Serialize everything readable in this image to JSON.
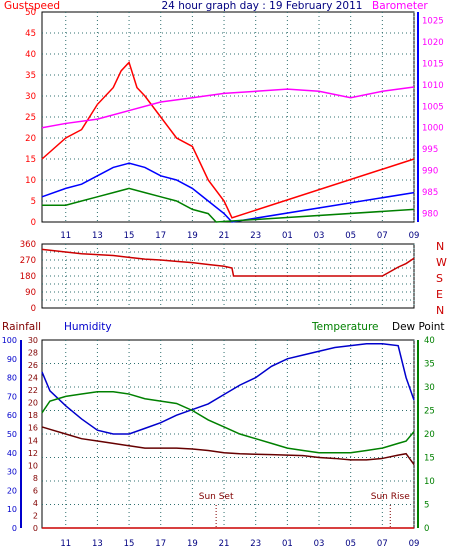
{
  "chart_data": [
    {
      "type": "line",
      "title": "24 hour graph day : 19 February 2011",
      "left_label": "Gustspeed",
      "right_label": "Barometer",
      "x_ticks": [
        "11",
        "13",
        "15",
        "17",
        "19",
        "21",
        "23",
        "01",
        "03",
        "05",
        "07",
        "09"
      ],
      "y_left_ticks": [
        0,
        5,
        10,
        15,
        20,
        25,
        30,
        35,
        40,
        45,
        50
      ],
      "ylim_left": [
        0,
        50
      ],
      "y_right_ticks": [
        980,
        985,
        990,
        995,
        1000,
        1005,
        1010,
        1015,
        1020,
        1025
      ],
      "ylim_right": [
        978,
        1027
      ],
      "grid": true,
      "series": [
        {
          "name": "Gustspeed",
          "axis": "left",
          "color": "#ff0000",
          "x": [
            9.5,
            11,
            12,
            13,
            14,
            14.5,
            15,
            15.5,
            16,
            17,
            18,
            19,
            20,
            21,
            21.5,
            9
          ],
          "y": [
            15,
            20,
            22,
            28,
            32,
            36,
            38,
            32,
            30,
            25,
            20,
            18,
            10,
            5,
            1,
            15
          ]
        },
        {
          "name": "",
          "axis": "left",
          "color": "#0000ff",
          "x": [
            9.5,
            11,
            12,
            13,
            14,
            15,
            16,
            17,
            18,
            19,
            20,
            21,
            21.5,
            9
          ],
          "y": [
            6,
            8,
            9,
            11,
            13,
            14,
            13,
            11,
            10,
            8,
            5,
            2,
            0,
            7
          ]
        },
        {
          "name": "",
          "axis": "left",
          "color": "#008000",
          "x": [
            9.5,
            11,
            12,
            13,
            14,
            15,
            16,
            17,
            18,
            19,
            20,
            20.5,
            9
          ],
          "y": [
            4,
            4,
            5,
            6,
            7,
            8,
            7,
            6,
            5,
            3,
            2,
            0,
            3
          ]
        },
        {
          "name": "Barometer",
          "axis": "right",
          "color": "#ff00ff",
          "x": [
            9.5,
            11,
            13,
            15,
            17,
            19,
            21,
            23,
            1,
            3,
            5,
            7,
            9
          ],
          "y": [
            1000,
            1001,
            1002,
            1004,
            1006,
            1007,
            1008,
            1008.5,
            1009,
            1008.5,
            1007,
            1008.5,
            1009.5
          ]
        }
      ]
    },
    {
      "type": "scatter",
      "left_label": "",
      "compass_labels": [
        "N",
        "W",
        "S",
        "E",
        "N"
      ],
      "y_ticks": [
        0,
        45,
        90,
        135,
        180,
        225,
        270,
        315,
        360
      ],
      "ylim": [
        0,
        360
      ],
      "grid": true,
      "series": [
        {
          "name": "",
          "color": "#cc0000",
          "x": [
            9.5,
            10,
            11,
            12,
            13,
            14,
            15,
            16,
            17,
            18,
            19,
            20,
            21,
            21.5,
            21.6,
            7,
            8,
            8.5,
            9
          ],
          "y": [
            330,
            325,
            315,
            305,
            300,
            295,
            285,
            275,
            270,
            262,
            255,
            245,
            235,
            225,
            180,
            180,
            230,
            250,
            280
          ]
        }
      ]
    },
    {
      "type": "line",
      "rainfall_label": "Rainfall",
      "humidity_label": "Humidity",
      "temperature_label": "Temperature",
      "dewpoint_label": "Dew Point",
      "sunset_label": "Sun Set",
      "sunrise_label": "Sun Rise",
      "rain_ticks": [
        0,
        2,
        4,
        6,
        8,
        10,
        12,
        14,
        16,
        18,
        20,
        22,
        24,
        26,
        28,
        30
      ],
      "humidity_ticks": [
        0,
        10,
        20,
        30,
        40,
        50,
        60,
        70,
        80,
        90,
        100
      ],
      "temp_ticks": [
        0,
        5,
        10,
        15,
        20,
        25,
        30,
        35,
        40
      ],
      "ylim_temp": [
        0,
        40
      ],
      "ylim_humidity": [
        0,
        100
      ],
      "grid": true,
      "series": [
        {
          "name": "Humidity",
          "axis": "humidity",
          "color": "#0000cc",
          "x": [
            9.5,
            10,
            11,
            12,
            13,
            14,
            15,
            16,
            17,
            18,
            19,
            20,
            21,
            22,
            23,
            24,
            1,
            2,
            3,
            4,
            5,
            6,
            7,
            8,
            8.5,
            9
          ],
          "y": [
            83,
            73,
            65,
            58,
            52,
            50,
            50,
            53,
            56,
            60,
            63,
            66,
            71,
            76,
            80,
            86,
            90,
            92,
            94,
            96,
            97,
            98,
            98,
            97,
            80,
            68
          ]
        },
        {
          "name": "Temperature",
          "axis": "temp",
          "color": "#008000",
          "x": [
            9.5,
            10,
            11,
            12,
            13,
            14,
            15,
            16,
            17,
            18,
            19,
            20,
            21,
            22,
            23,
            24,
            1,
            2,
            3,
            4,
            5,
            6,
            7,
            8,
            8.5,
            9
          ],
          "y": [
            24.5,
            27,
            28,
            28.5,
            29,
            29,
            28.5,
            27.5,
            27,
            26.5,
            25,
            23,
            21.5,
            20,
            19,
            18,
            17,
            16.5,
            16,
            16,
            16,
            16.5,
            17,
            18,
            18.5,
            20.5
          ]
        },
        {
          "name": "Dew Point",
          "axis": "temp",
          "color": "#660000",
          "x": [
            9.5,
            10,
            11,
            12,
            13,
            14,
            15,
            16,
            17,
            18,
            19,
            20,
            21,
            22,
            23,
            24,
            1,
            2,
            3,
            4,
            5,
            6,
            7,
            8,
            8.5,
            9
          ],
          "y": [
            21.5,
            21,
            20,
            19,
            18.5,
            18,
            17.5,
            17,
            17,
            17,
            16.8,
            16.5,
            16,
            15.8,
            15.7,
            15.6,
            15.5,
            15.4,
            15,
            14.8,
            14.5,
            14.5,
            14.8,
            15.5,
            15.8,
            13.5
          ]
        },
        {
          "name": "Rainfall",
          "axis": "rain",
          "color": "#cc0000",
          "x": [
            9.5,
            9
          ],
          "y": [
            0,
            0
          ]
        }
      ]
    }
  ]
}
